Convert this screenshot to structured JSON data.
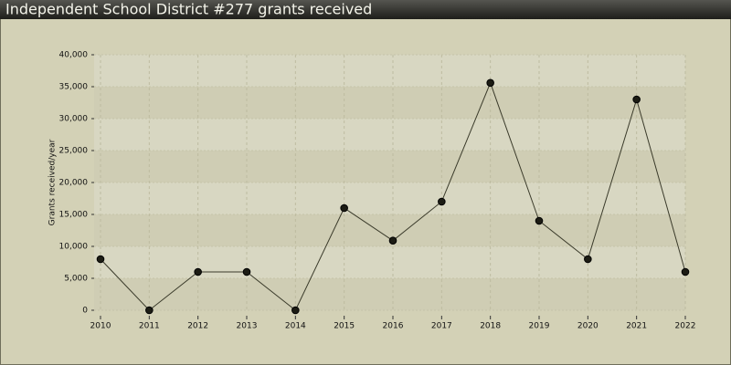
{
  "chart_data": {
    "type": "line",
    "title": "Independent School District #277 grants received",
    "y_label": "Grants received/year",
    "x": [
      2010,
      2011,
      2012,
      2013,
      2014,
      2015,
      2016,
      2017,
      2018,
      2019,
      2020,
      2021,
      2022
    ],
    "values": [
      8000,
      0,
      6000,
      6000,
      0,
      16000,
      10900,
      17000,
      35600,
      14000,
      8000,
      33000,
      6000
    ],
    "color": "#3a3a2a",
    "xlim": [
      2010,
      2022
    ],
    "xticks": [
      2010,
      2011,
      2012,
      2013,
      2014,
      2015,
      2016,
      2017,
      2018,
      2019,
      2020,
      2021,
      2022
    ],
    "ylim": [
      0,
      40000
    ],
    "yticks": [
      0,
      {
        "value": 5000,
        "label": "5,000"
      },
      {
        "value": 10000,
        "label": "10,000"
      },
      {
        "value": 15000,
        "label": "15,000"
      },
      {
        "value": 20000,
        "label": "20,000"
      },
      {
        "value": 25000,
        "label": "25,000"
      },
      {
        "value": 30000,
        "label": "30,000"
      },
      {
        "value": 35000,
        "label": "35,000"
      },
      {
        "value": 40000,
        "label": "40,000"
      }
    ],
    "grid": true
  }
}
